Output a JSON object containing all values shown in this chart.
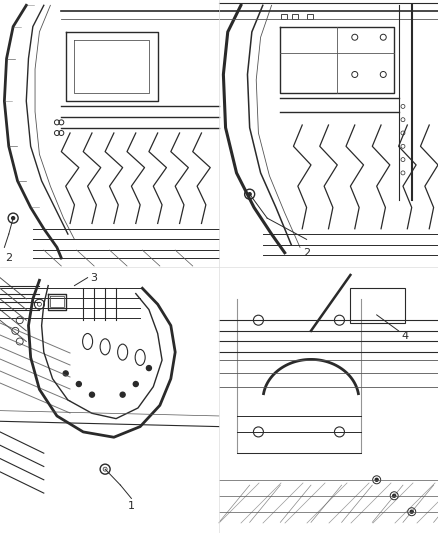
{
  "bg_color": "#ffffff",
  "line_color": "#2a2a2a",
  "light_line": "#888888",
  "mid_line": "#555555",
  "fig_width": 4.38,
  "fig_height": 5.33,
  "dpi": 100
}
